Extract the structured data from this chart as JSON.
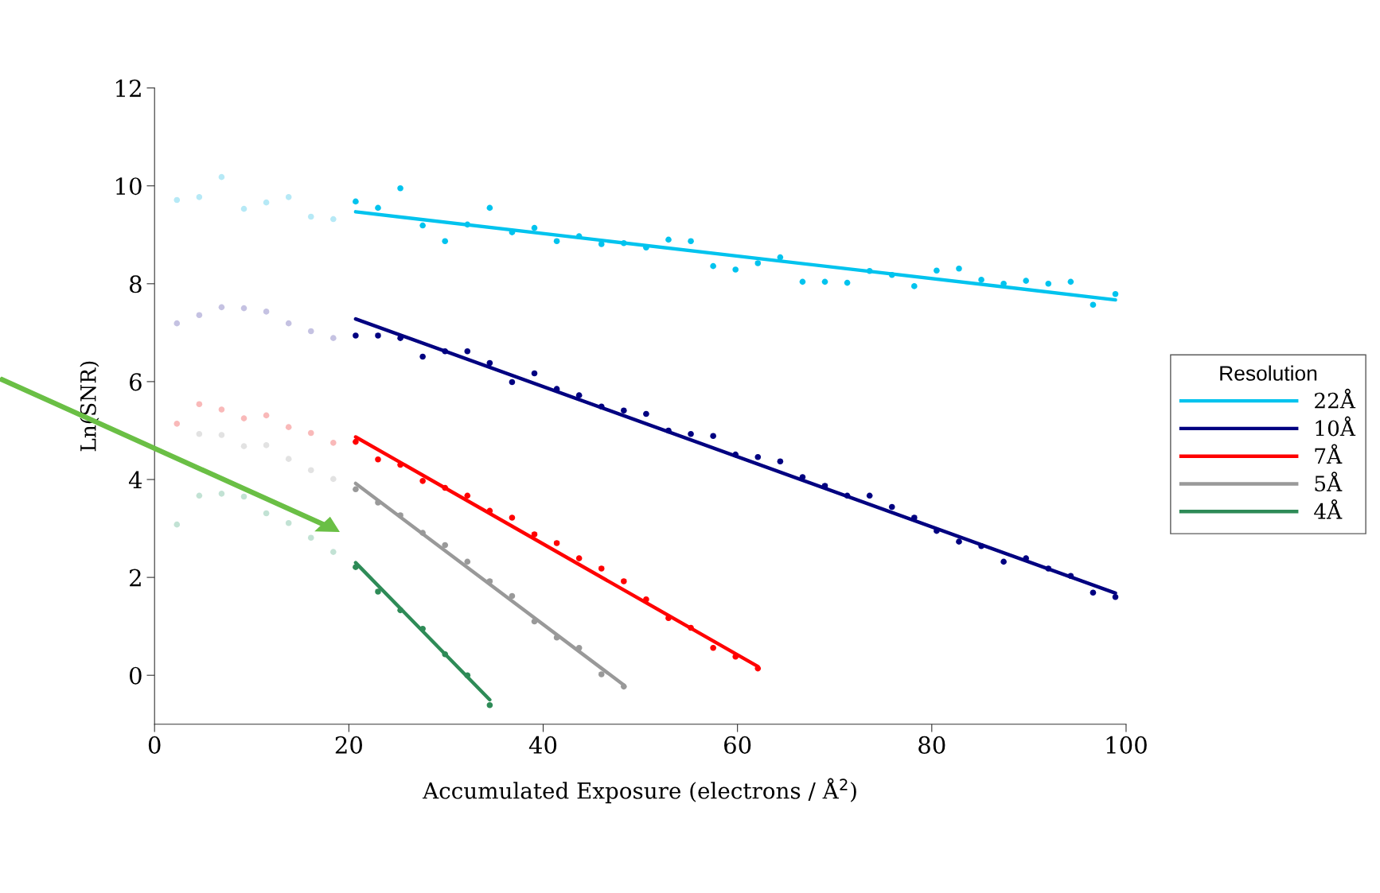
{
  "chart_data": {
    "type": "scatter",
    "xlabel": "Accumulated Exposure (electrons / Å$^{2}$)",
    "ylabel": "Ln(SNR)",
    "legend_title": "Resolution",
    "xlim": [
      0,
      100
    ],
    "xticks": [
      0,
      20,
      40,
      60,
      80,
      100
    ],
    "ylim": [
      -1,
      12
    ],
    "yticks": [
      0,
      2,
      4,
      6,
      8,
      10,
      12
    ],
    "grid": false,
    "legend": "right",
    "marker": "circle",
    "series": [
      {
        "color": "#b6e9f6",
        "x": [
          2.3,
          4.6,
          6.9,
          9.2,
          11.5,
          13.8,
          16.1,
          18.4
        ],
        "values": [
          9.71,
          9.77,
          10.18,
          9.53,
          9.66,
          9.77,
          9.37,
          9.32
        ]
      },
      {
        "color": "#00c3ee",
        "x": [
          20.7,
          23,
          25.3,
          27.6,
          29.9,
          32.2,
          34.5,
          36.8,
          39.1,
          41.4,
          43.7,
          46,
          48.3,
          50.6,
          52.9,
          55.2,
          57.5,
          59.8,
          62.1,
          64.4,
          66.7,
          69,
          71.3,
          73.6,
          75.9,
          78.2,
          80.5,
          82.8,
          85.1,
          87.4,
          89.7,
          92,
          94.3,
          96.6,
          98.9
        ],
        "values": [
          9.68,
          9.55,
          9.95,
          9.19,
          8.87,
          9.21,
          9.55,
          9.05,
          9.14,
          8.87,
          8.97,
          8.81,
          8.83,
          8.74,
          8.9,
          8.87,
          8.36,
          8.29,
          8.42,
          8.54,
          8.04,
          8.04,
          8.02,
          8.26,
          8.18,
          7.95,
          8.27,
          8.31,
          8.08,
          8.0,
          8.06,
          8.0,
          8.04,
          7.57,
          7.79
        ]
      },
      {
        "color": "#c5c2e2",
        "x": [
          2.3,
          4.6,
          6.9,
          9.2,
          11.5,
          13.8,
          16.1,
          18.4
        ],
        "values": [
          7.19,
          7.36,
          7.52,
          7.5,
          7.43,
          7.19,
          7.03,
          6.89
        ]
      },
      {
        "color": "#000080",
        "x": [
          20.7,
          23,
          25.3,
          27.6,
          29.9,
          32.2,
          34.5,
          36.8,
          39.1,
          41.4,
          43.7,
          46,
          48.3,
          50.6,
          52.9,
          55.2,
          57.5,
          59.8,
          62.1,
          64.4,
          66.7,
          69,
          71.3,
          73.6,
          75.9,
          78.2,
          80.5,
          82.8,
          85.1,
          87.4,
          89.7,
          92,
          94.3,
          96.6,
          98.9
        ],
        "values": [
          6.94,
          6.94,
          6.89,
          6.51,
          6.62,
          6.62,
          6.38,
          5.99,
          6.17,
          5.85,
          5.72,
          5.49,
          5.41,
          5.34,
          5.0,
          4.93,
          4.89,
          4.51,
          4.46,
          4.37,
          4.05,
          3.87,
          3.67,
          3.67,
          3.44,
          3.22,
          2.95,
          2.73,
          2.64,
          2.32,
          2.39,
          2.18,
          2.03,
          1.69,
          1.6
        ]
      },
      {
        "color": "#f9b9b9",
        "x": [
          2.3,
          4.6,
          6.9,
          9.2,
          11.5,
          13.8,
          16.1,
          18.4
        ],
        "values": [
          5.14,
          5.54,
          5.43,
          5.25,
          5.31,
          5.07,
          4.95,
          4.75
        ]
      },
      {
        "color": "#ff0000",
        "x": [
          20.7,
          23,
          25.3,
          27.6,
          29.9,
          32.2,
          34.5,
          36.8,
          39.1,
          41.4,
          43.7,
          46,
          48.3,
          50.6,
          52.9,
          55.2,
          57.5,
          59.8,
          62.1
        ],
        "values": [
          4.77,
          4.41,
          4.3,
          3.97,
          3.83,
          3.67,
          3.36,
          3.22,
          2.88,
          2.7,
          2.39,
          2.18,
          1.92,
          1.55,
          1.17,
          0.97,
          0.56,
          0.38,
          0.14
        ]
      },
      {
        "color": "#e2e2e2",
        "x": [
          4.6,
          6.9,
          9.2,
          11.5,
          13.8,
          16.1,
          18.4
        ],
        "values": [
          4.93,
          4.91,
          4.68,
          4.7,
          4.42,
          4.19,
          4.01
        ]
      },
      {
        "color": "#999999",
        "x": [
          20.7,
          23,
          25.3,
          27.6,
          29.9,
          32.2,
          34.5,
          36.8,
          39.1,
          41.4,
          43.7,
          46,
          48.3
        ],
        "values": [
          3.8,
          3.53,
          3.27,
          2.91,
          2.66,
          2.32,
          1.92,
          1.62,
          1.1,
          0.77,
          0.56,
          0.02,
          -0.23
        ]
      },
      {
        "color": "#c2e2d4",
        "x": [
          2.3,
          4.6,
          6.9,
          9.2,
          11.5,
          13.8,
          16.1,
          18.4
        ],
        "values": [
          3.08,
          3.67,
          3.71,
          3.65,
          3.31,
          3.11,
          2.81,
          2.52
        ]
      },
      {
        "color": "#2e8b57",
        "x": [
          20.7,
          23,
          25.3,
          27.6,
          29.9,
          32.2,
          34.5
        ],
        "values": [
          2.21,
          1.71,
          1.33,
          0.95,
          0.43,
          0.0,
          -0.61
        ]
      },
      {
        "type": "line",
        "marker": "none",
        "name": "22Å",
        "color": "#00c3ee",
        "x": [
          20.7,
          98.9
        ],
        "values": [
          9.47,
          7.67
        ]
      },
      {
        "type": "line",
        "marker": "none",
        "name": "10Å",
        "color": "#000080",
        "x": [
          20.7,
          98.9
        ],
        "values": [
          7.28,
          1.68
        ]
      },
      {
        "type": "line",
        "marker": "none",
        "name": "7Å",
        "color": "#ff0000",
        "x": [
          20.7,
          62.1
        ],
        "values": [
          4.87,
          0.18
        ]
      },
      {
        "type": "line",
        "marker": "none",
        "name": "5Å",
        "color": "#999999",
        "x": [
          20.7,
          48.3
        ],
        "values": [
          3.92,
          -0.2
        ]
      },
      {
        "type": "line",
        "marker": "none",
        "name": "4Å",
        "color": "#2e8b57",
        "x": [
          20.7,
          34.5
        ],
        "values": [
          2.3,
          -0.5
        ]
      }
    ]
  }
}
